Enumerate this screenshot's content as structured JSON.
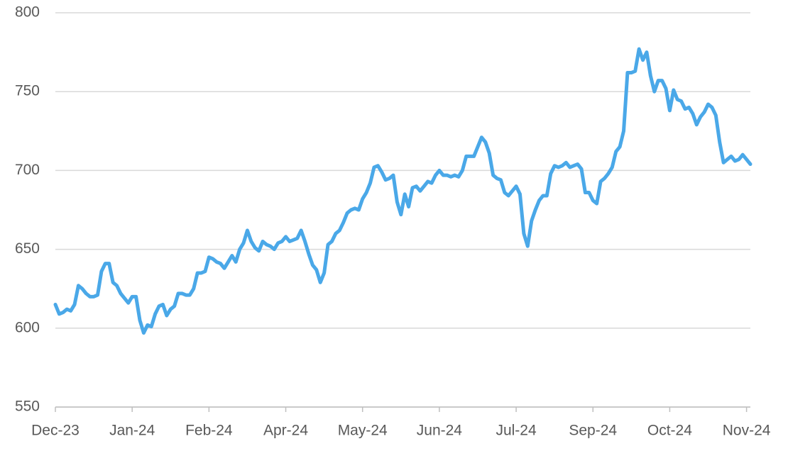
{
  "chart_data": {
    "type": "line",
    "color": "#4aa8e8",
    "grid": true,
    "values": [
      615,
      609,
      610,
      612,
      611,
      615,
      627,
      625,
      622,
      620,
      620,
      621,
      636,
      641,
      641,
      629,
      627,
      622,
      619,
      616,
      620,
      620,
      605,
      597,
      602,
      601,
      609,
      614,
      615,
      608,
      612,
      614,
      622,
      622,
      621,
      621,
      625,
      635,
      635,
      636,
      645,
      644,
      642,
      641,
      638,
      642,
      646,
      642,
      650,
      654,
      662,
      655,
      651,
      649,
      655,
      653,
      652,
      650,
      654,
      655,
      658,
      655,
      656,
      657,
      662,
      655,
      647,
      640,
      637,
      629,
      635,
      653,
      655,
      660,
      662,
      667,
      673,
      675,
      676,
      675,
      682,
      686,
      692,
      702,
      703,
      699,
      694,
      695,
      697,
      680,
      672,
      685,
      677,
      689,
      690,
      687,
      690,
      693,
      692,
      697,
      700,
      697,
      697,
      696,
      697,
      696,
      700,
      709,
      709,
      709,
      715,
      721,
      718,
      711,
      697,
      695,
      694,
      686,
      684,
      687,
      690,
      685,
      660,
      652,
      668,
      675,
      681,
      684,
      684,
      698,
      703,
      702,
      703,
      705,
      702,
      703,
      704,
      701,
      686,
      686,
      681,
      679,
      693,
      695,
      698,
      702,
      712,
      715,
      725,
      762,
      762,
      763,
      777,
      770,
      775,
      760,
      750,
      757,
      757,
      752,
      738,
      751,
      745,
      744,
      739,
      740,
      736,
      729,
      734,
      737,
      742,
      740,
      735,
      718,
      705,
      707,
      709,
      706,
      707,
      710,
      707,
      704
    ],
    "xlim": [
      0,
      181
    ],
    "xticks": [
      {
        "value": 0,
        "label": "Dec-23"
      },
      {
        "value": 20,
        "label": "Jan-24"
      },
      {
        "value": 40,
        "label": "Feb-24"
      },
      {
        "value": 60,
        "label": "Apr-24"
      },
      {
        "value": 80,
        "label": "May-24"
      },
      {
        "value": 100,
        "label": "Jun-24"
      },
      {
        "value": 120,
        "label": "Jul-24"
      },
      {
        "value": 140,
        "label": "Sep-24"
      },
      {
        "value": 160,
        "label": "Oct-24"
      },
      {
        "value": 180,
        "label": "Nov-24"
      }
    ],
    "ylim": [
      550,
      800
    ],
    "yticks": [
      550,
      600,
      650,
      700,
      750,
      800
    ]
  }
}
